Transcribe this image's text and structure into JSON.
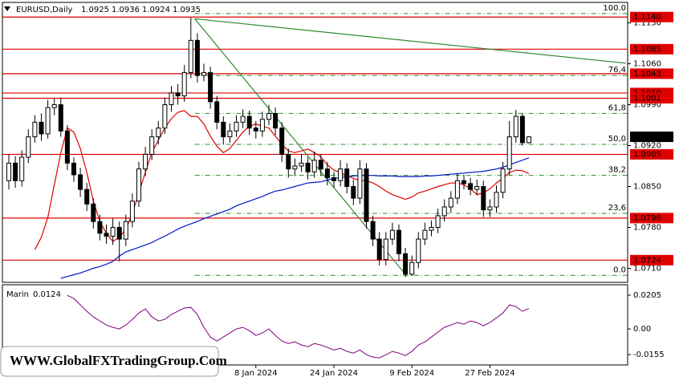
{
  "chart_data": {
    "type": "candlestick",
    "title": "EURUSD,Daily",
    "categories": [
      null,
      null,
      null,
      null,
      null,
      null,
      null,
      null,
      null,
      null,
      null,
      null,
      null,
      null,
      null,
      null,
      null,
      null,
      null,
      null,
      null,
      null,
      null,
      null,
      null,
      null,
      null,
      null,
      null,
      null,
      null,
      null,
      null,
      null,
      null,
      null,
      null,
      null,
      "8 Jan 2024",
      null,
      null,
      null,
      null,
      null,
      null,
      null,
      null,
      null,
      null,
      null,
      "24 Jan 2024",
      null,
      null,
      null,
      null,
      null,
      null,
      null,
      null,
      null,
      null,
      null,
      "9 Feb 2024",
      null,
      null,
      null,
      null,
      null,
      null,
      null,
      null,
      null,
      null,
      null,
      "27 Feb 2024",
      null,
      null,
      null,
      null,
      null,
      null
    ],
    "ohlc": [
      [
        1.086,
        1.0905,
        1.0845,
        1.089
      ],
      [
        1.089,
        1.0902,
        1.0848,
        1.086
      ],
      [
        1.086,
        1.0912,
        1.085,
        1.09
      ],
      [
        1.09,
        1.0948,
        1.089,
        1.0935
      ],
      [
        1.0935,
        1.0972,
        1.0925,
        1.096
      ],
      [
        1.096,
        1.0975,
        1.0928,
        1.094
      ],
      [
        1.094,
        1.0998,
        1.0932,
        1.0985
      ],
      [
        1.0985,
        1.1,
        1.0972,
        1.099
      ],
      [
        1.099,
        1.1002,
        1.0935,
        1.0945
      ],
      [
        1.0945,
        1.0955,
        1.0878,
        1.089
      ],
      [
        1.089,
        1.09,
        1.0858,
        1.087
      ],
      [
        1.087,
        1.0882,
        1.0832,
        1.0845
      ],
      [
        1.0845,
        1.0856,
        1.0808,
        1.082
      ],
      [
        1.082,
        1.083,
        1.0778,
        1.079
      ],
      [
        1.079,
        1.0802,
        1.0758,
        1.077
      ],
      [
        1.077,
        1.0785,
        1.0752,
        1.0765
      ],
      [
        1.0765,
        1.0795,
        1.075,
        1.078
      ],
      [
        1.078,
        1.079,
        1.0722,
        1.076
      ],
      [
        1.076,
        1.0802,
        1.0748,
        1.079
      ],
      [
        1.079,
        1.0838,
        1.078,
        1.0825
      ],
      [
        1.0825,
        1.0892,
        1.0815,
        1.088
      ],
      [
        1.088,
        1.0918,
        1.0868,
        1.0905
      ],
      [
        1.0905,
        1.0948,
        1.0895,
        1.0935
      ],
      [
        1.0935,
        1.0962,
        1.0922,
        1.095
      ],
      [
        1.095,
        1.1002,
        1.094,
        1.099
      ],
      [
        1.099,
        1.1022,
        1.0978,
        1.101
      ],
      [
        1.101,
        1.1025,
        1.099,
        1.1005
      ],
      [
        1.1005,
        1.1058,
        1.0995,
        1.1045
      ],
      [
        1.1045,
        1.1139,
        1.1035,
        1.11
      ],
      [
        1.11,
        1.1112,
        1.1028,
        1.104
      ],
      [
        1.104,
        1.106,
        1.103,
        1.1045
      ],
      [
        1.1045,
        1.1055,
        1.0983,
        1.0995
      ],
      [
        1.0995,
        1.1005,
        1.0948,
        1.096
      ],
      [
        1.096,
        1.097,
        1.0922,
        1.0935
      ],
      [
        1.0935,
        1.0958,
        1.0925,
        1.0945
      ],
      [
        1.0945,
        1.0972,
        1.0935,
        1.096
      ],
      [
        1.096,
        1.0982,
        1.095,
        1.097
      ],
      [
        1.097,
        1.098,
        1.0938,
        1.095
      ],
      [
        1.095,
        1.0962,
        1.0932,
        1.0945
      ],
      [
        1.0945,
        1.0978,
        1.0935,
        1.0965
      ],
      [
        1.0965,
        1.099,
        1.0955,
        1.0975
      ],
      [
        1.0975,
        1.0985,
        1.0938,
        1.095
      ],
      [
        1.095,
        1.096,
        1.0892,
        1.0905
      ],
      [
        1.0905,
        1.0915,
        1.0865,
        1.088
      ],
      [
        1.088,
        1.0898,
        1.0868,
        1.0885
      ],
      [
        1.0885,
        1.0905,
        1.0875,
        1.089
      ],
      [
        1.089,
        1.09,
        1.0862,
        1.0875
      ],
      [
        1.0875,
        1.091,
        1.0865,
        1.0895
      ],
      [
        1.0895,
        1.0905,
        1.0868,
        1.088
      ],
      [
        1.088,
        1.0892,
        1.0852,
        1.0865
      ],
      [
        1.0865,
        1.0875,
        1.0848,
        1.086
      ],
      [
        1.086,
        1.0895,
        1.085,
        1.088
      ],
      [
        1.088,
        1.089,
        1.0838,
        1.085
      ],
      [
        1.085,
        1.0862,
        1.0818,
        1.083
      ],
      [
        1.083,
        1.0895,
        1.082,
        1.088
      ],
      [
        1.088,
        1.089,
        1.0778,
        1.079
      ],
      [
        1.079,
        1.08,
        1.0748,
        1.076
      ],
      [
        1.076,
        1.0772,
        1.0715,
        1.0725
      ],
      [
        1.0725,
        1.0772,
        1.0715,
        1.076
      ],
      [
        1.076,
        1.0788,
        1.075,
        1.0775
      ],
      [
        1.0775,
        1.0785,
        1.0722,
        1.0735
      ],
      [
        1.0735,
        1.0745,
        1.0695,
        1.07
      ],
      [
        1.07,
        1.0732,
        1.0697,
        1.072
      ],
      [
        1.072,
        1.0772,
        1.071,
        1.076
      ],
      [
        1.076,
        1.0788,
        1.075,
        1.0775
      ],
      [
        1.0775,
        1.0792,
        1.0765,
        1.078
      ],
      [
        1.078,
        1.0812,
        1.077,
        1.08
      ],
      [
        1.08,
        1.0828,
        1.079,
        1.0815
      ],
      [
        1.0815,
        1.0842,
        1.0805,
        1.083
      ],
      [
        1.083,
        1.0872,
        1.082,
        1.086
      ],
      [
        1.086,
        1.087,
        1.0845,
        1.0855
      ],
      [
        1.0855,
        1.0865,
        1.0835,
        1.0845
      ],
      [
        1.0845,
        1.0862,
        1.0835,
        1.085
      ],
      [
        1.085,
        1.086,
        1.0798,
        1.081
      ],
      [
        1.081,
        1.0828,
        1.0798,
        1.0815
      ],
      [
        1.0815,
        1.0852,
        1.0805,
        1.084
      ],
      [
        1.084,
        1.0892,
        1.083,
        1.088
      ],
      [
        1.088,
        1.0962,
        1.087,
        1.0935
      ],
      [
        1.0935,
        1.0981,
        1.0925,
        1.097
      ],
      [
        1.097,
        1.0975,
        1.092,
        1.0925
      ],
      [
        1.0925,
        1.0936,
        1.0924,
        1.0935
      ]
    ],
    "up_color": "#ffffff",
    "down_color": "#000000",
    "overlays": [
      {
        "color": "#e00000",
        "values": [
          null,
          null,
          null,
          null,
          1.0742,
          1.0763,
          1.0797,
          1.0853,
          1.0908,
          1.095,
          1.0943,
          1.0915,
          1.0874,
          1.0825,
          1.079,
          1.077,
          1.0756,
          1.0763,
          1.0777,
          1.0804,
          1.0839,
          1.0874,
          1.0908,
          1.0929,
          1.095,
          1.0966,
          1.0977,
          1.098,
          1.097,
          1.097,
          1.0957,
          1.0936,
          1.0919,
          1.0908,
          1.0915,
          1.0929,
          1.0943,
          1.0953,
          1.0957,
          1.0953,
          1.095,
          1.0936,
          1.0922,
          1.0911,
          1.0908,
          1.0911,
          1.0914,
          1.0908,
          1.0901,
          1.0887,
          1.0878,
          1.0874,
          1.0869,
          1.0864,
          1.086,
          1.086,
          1.0856,
          1.085,
          1.0842,
          1.0836,
          1.0832,
          1.0828,
          1.0832,
          1.0839,
          1.0842,
          1.0846,
          1.085,
          1.0853,
          1.0856,
          1.0856,
          1.0853,
          1.0846,
          1.0836,
          1.0839,
          1.0846,
          1.0856,
          1.0864,
          1.0874,
          1.0878,
          1.0877,
          1.0872
        ]
      },
      {
        "color": "#0018c8",
        "values": [
          null,
          null,
          null,
          null,
          null,
          null,
          null,
          null,
          1.0693,
          1.0696,
          1.0699,
          1.0702,
          1.0706,
          1.071,
          1.0713,
          1.0717,
          1.0722,
          1.0731,
          1.0738,
          1.0742,
          1.0746,
          1.075,
          1.0754,
          1.076,
          1.0765,
          1.0771,
          1.0777,
          1.0782,
          1.0786,
          1.079,
          1.0795,
          1.0799,
          1.0803,
          1.0807,
          1.0811,
          1.0817,
          1.0821,
          1.0825,
          1.0829,
          1.0833,
          1.0838,
          1.0842,
          1.0844,
          1.0847,
          1.085,
          1.0853,
          1.0856,
          1.0857,
          1.0858,
          1.0861,
          1.0864,
          1.0865,
          1.0867,
          1.0868,
          1.0869,
          1.0869,
          1.0869,
          1.0868,
          1.0868,
          1.0868,
          1.0867,
          1.0867,
          1.0867,
          1.0867,
          1.0868,
          1.0868,
          1.0869,
          1.087,
          1.0871,
          1.0872,
          1.0873,
          1.0874,
          1.0875,
          1.0876,
          1.0878,
          1.088,
          1.0883,
          1.0887,
          1.0891,
          1.0895,
          1.0899
        ]
      }
    ],
    "ylim": [
      1.0686,
      1.1165
    ],
    "yticks": [
      {
        "value": 1.113,
        "label": "1.1130"
      },
      {
        "value": 1.106,
        "label": "1.1060"
      },
      {
        "value": 1.099,
        "label": "1.0990"
      },
      {
        "value": 1.092,
        "label": "1.0920"
      },
      {
        "value": 1.085,
        "label": "1.0850"
      },
      {
        "value": 1.078,
        "label": "1.0780"
      },
      {
        "value": 1.071,
        "label": "1.0710"
      }
    ],
    "levels": [
      {
        "value": 1.114,
        "label": "1.1140"
      },
      1.1085,
      1.1043,
      {
        "value": 1.101,
        "label": "1.1010"
      },
      1.1001,
      1.0905,
      1.0796,
      1.0724
    ],
    "level_color": "#e00000",
    "current_price": 1.0935,
    "fibonacci": {
      "color": "#2e8b2e",
      "start": 28.6,
      "levels": [
        {
          "level": {
            "value": 100,
            "label": "100.0"
          },
          "price": 1.1146
        },
        {
          "level": {
            "value": 76.4,
            "label": "76,4"
          },
          "price": 1.104
        },
        {
          "level": {
            "value": 61.8,
            "label": "61,8"
          },
          "price": 1.0975
        },
        {
          "level": {
            "value": 50,
            "label": "50,0"
          },
          "price": 1.0922
        },
        {
          "level": {
            "value": 38.2,
            "label": "38,2"
          },
          "price": 1.0869
        },
        {
          "level": {
            "value": 23.6,
            "label": "23,6"
          },
          "price": 1.0804
        },
        {
          "level": {
            "value": 0,
            "label": "0.0"
          },
          "price": 1.0698
        }
      ]
    },
    "trendlines": [
      {
        "color": "#2e8b2e",
        "x": [
          28.6,
          94.9
        ],
        "y": [
          1.1137,
          1.1061
        ]
      },
      {
        "color": "#2e8b2e",
        "x": [
          28.6,
          61.2
        ],
        "y": [
          1.1137,
          1.0697
        ]
      }
    ],
    "indicator": {
      "name": "Marin",
      "color": "#800080",
      "values": [
        null,
        null,
        null,
        null,
        null,
        null,
        null,
        null,
        null,
        0.0204,
        0.0185,
        0.0146,
        0.0107,
        0.0073,
        0.0049,
        0.0024,
        0.001,
        0.0,
        0.0024,
        0.0058,
        0.0097,
        0.0122,
        0.0073,
        0.0049,
        0.0058,
        0.0088,
        0.0107,
        0.0127,
        0.0131,
        0.0088,
        0.001,
        -0.0049,
        -0.0073,
        -0.0049,
        -0.0024,
        0.0,
        0.001,
        -0.001,
        -0.0039,
        -0.0024,
        0.0,
        -0.0039,
        -0.0073,
        -0.0088,
        -0.0078,
        -0.0097,
        -0.0107,
        -0.0088,
        -0.0097,
        -0.0112,
        -0.0127,
        -0.0117,
        -0.0136,
        -0.0146,
        -0.0127,
        -0.0156,
        -0.017,
        -0.0175,
        -0.0156,
        -0.0136,
        -0.0146,
        -0.0161,
        -0.0136,
        -0.0097,
        -0.0078,
        -0.0049,
        -0.0019,
        0.001,
        0.0024,
        0.0039,
        0.0029,
        0.0049,
        0.0039,
        0.0019,
        0.0039,
        0.0068,
        0.0097,
        0.0146,
        0.0136,
        0.0107,
        0.0124
      ],
      "ylim": [
        -0.0218,
        0.0268
      ],
      "yticks": [
        0.0205,
        {
          "value": 0,
          "label": "0.00"
        },
        -0.0155
      ]
    },
    "watermark": "WWW.GlobalFXTradingGroup.Com"
  }
}
